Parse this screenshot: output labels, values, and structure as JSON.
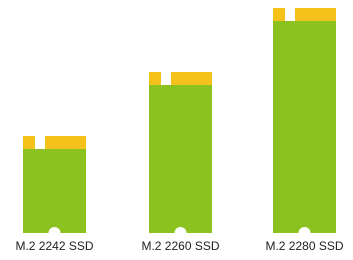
{
  "nodes": [
    {
      "label": "M.2 2242 SSD"
    },
    {
      "label": "M.2 2260 SSD"
    },
    {
      "label": "M.2 2280 SSD"
    }
  ]
}
